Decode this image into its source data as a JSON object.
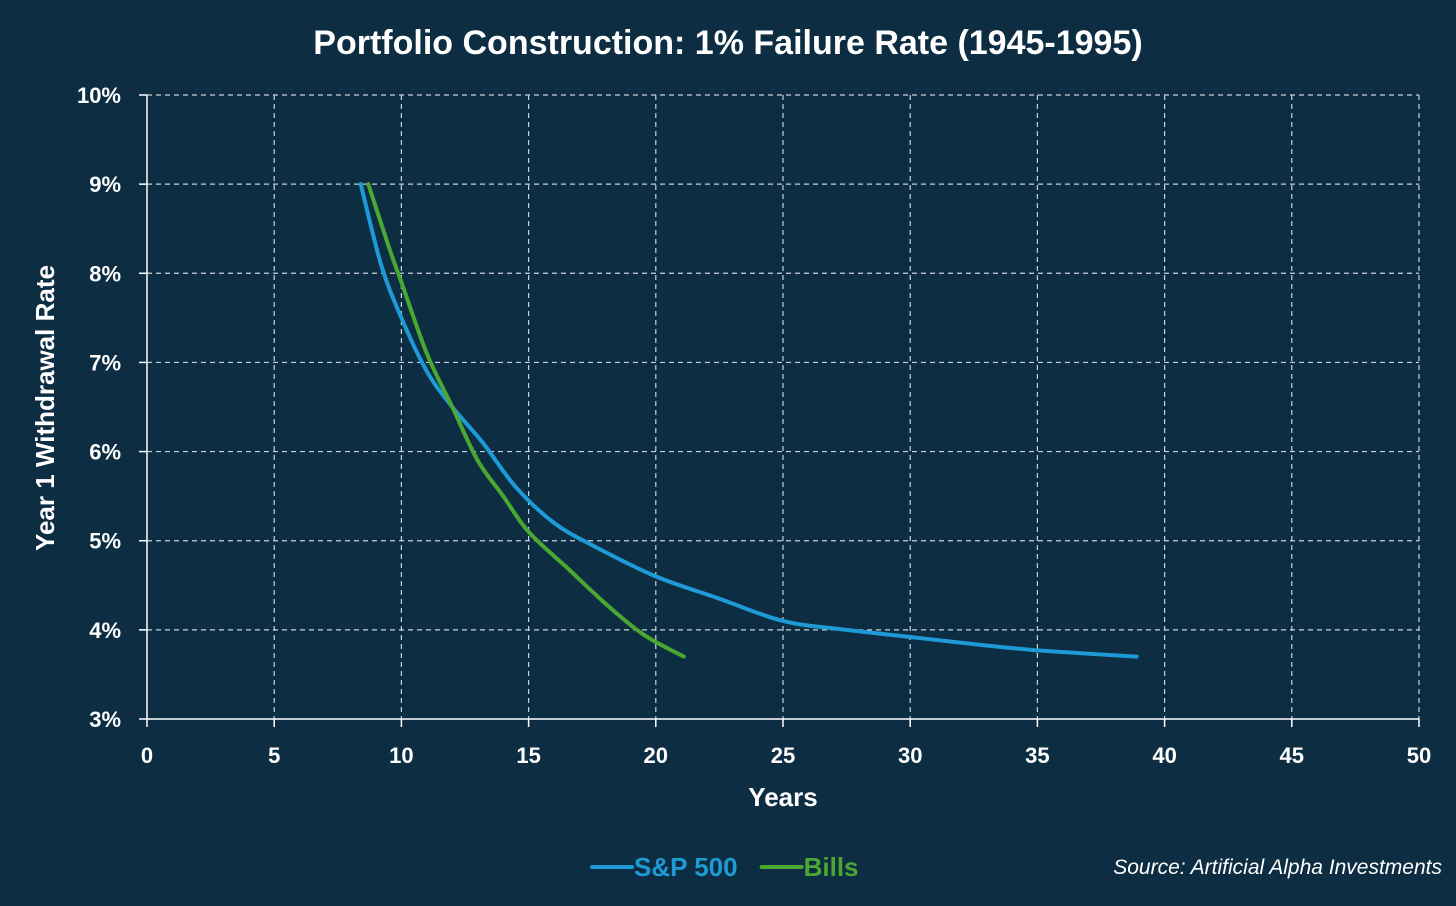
{
  "chart_data": {
    "type": "line",
    "title": "Portfolio Construction: 1% Failure Rate (1945-1995)",
    "xlabel": "Years",
    "ylabel": "Year 1 Withdrawal Rate",
    "xlim": [
      0,
      50
    ],
    "ylim": [
      3,
      10
    ],
    "x_ticks": [
      "0",
      "5",
      "10",
      "15",
      "20",
      "25",
      "30",
      "35",
      "40",
      "45",
      "50"
    ],
    "y_ticks": [
      "3%",
      "4%",
      "5%",
      "6%",
      "7%",
      "8%",
      "9%",
      "10%"
    ],
    "grid": true,
    "legend_position": "bottom-center",
    "series": [
      {
        "name": "S&P 500",
        "color": "#1e9ad6",
        "x": [
          8.4,
          9.2,
          10.0,
          11.0,
          12.0,
          13.2,
          14.5,
          16.0,
          17.5,
          20.0,
          22.5,
          25.0,
          27.5,
          30.0,
          32.5,
          35.0,
          38.9
        ],
        "y": [
          9.0,
          8.1,
          7.5,
          6.9,
          6.5,
          6.1,
          5.6,
          5.2,
          4.95,
          4.6,
          4.35,
          4.1,
          4.0,
          3.92,
          3.84,
          3.77,
          3.7
        ]
      },
      {
        "name": "Bills",
        "color": "#4aa832",
        "x": [
          8.7,
          9.5,
          10.0,
          11.0,
          12.0,
          13.0,
          14.0,
          15.0,
          16.5,
          18.0,
          19.5,
          21.1
        ],
        "y": [
          9.0,
          8.3,
          7.9,
          7.1,
          6.5,
          5.9,
          5.5,
          5.1,
          4.7,
          4.3,
          3.95,
          3.7
        ]
      }
    ],
    "source": "Source: Artificial Alpha Investments"
  }
}
